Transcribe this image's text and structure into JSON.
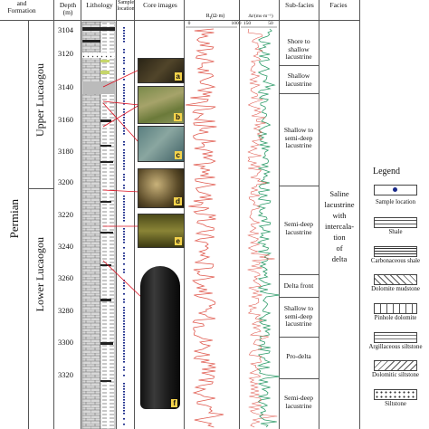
{
  "headers": {
    "period": "and\nFormation",
    "depth": "Depth (m)",
    "lithology": "Lithology",
    "sample": "Sample\nlocation",
    "core": "Core images",
    "res_label": "R",
    "res_sub": "t",
    "res_unit": "(Ω·m)",
    "res_min": "0",
    "res_max": "1000",
    "ac_label": "Δt/(ms·m⁻¹)",
    "ac_min": "150",
    "ac_max": "50",
    "subfacies": "Sub-facies",
    "facies": "Facies"
  },
  "period_name": "Permian",
  "formations": {
    "upper": "Upper Lucaogou",
    "lower": "Lower Lucaogou"
  },
  "depths": [
    "3104",
    "3120",
    "3140",
    "3160",
    "3180",
    "3200",
    "3220",
    "3240",
    "3260",
    "3280",
    "3300",
    "3320"
  ],
  "core_labels": [
    "a",
    "b",
    "c",
    "d",
    "e",
    "f"
  ],
  "subfacies": [
    "Shore to\nshallow\nlacustrine",
    "Shallow\nlacustrine",
    "Shallow to\nsemi-deep\nlacustrine",
    "Semi-deep\nlacustrine",
    "Delta front",
    "Shallow to\nsemi-deep\nlacustrine",
    "Pro-delta",
    "Semi-deep\nlacustrine"
  ],
  "facies": "Saline\nlacustrine\nwith\nintercala-\ntion\nof\ndelta",
  "legend": {
    "title": "Legend",
    "items": [
      "Sample location",
      "Shale",
      "Carbonaceous shale",
      "Dolomite mudstone",
      "Pinhole dolomite",
      "Argillaceous siltstone",
      "Dolomitic siltstone",
      "Siltstone"
    ]
  }
}
